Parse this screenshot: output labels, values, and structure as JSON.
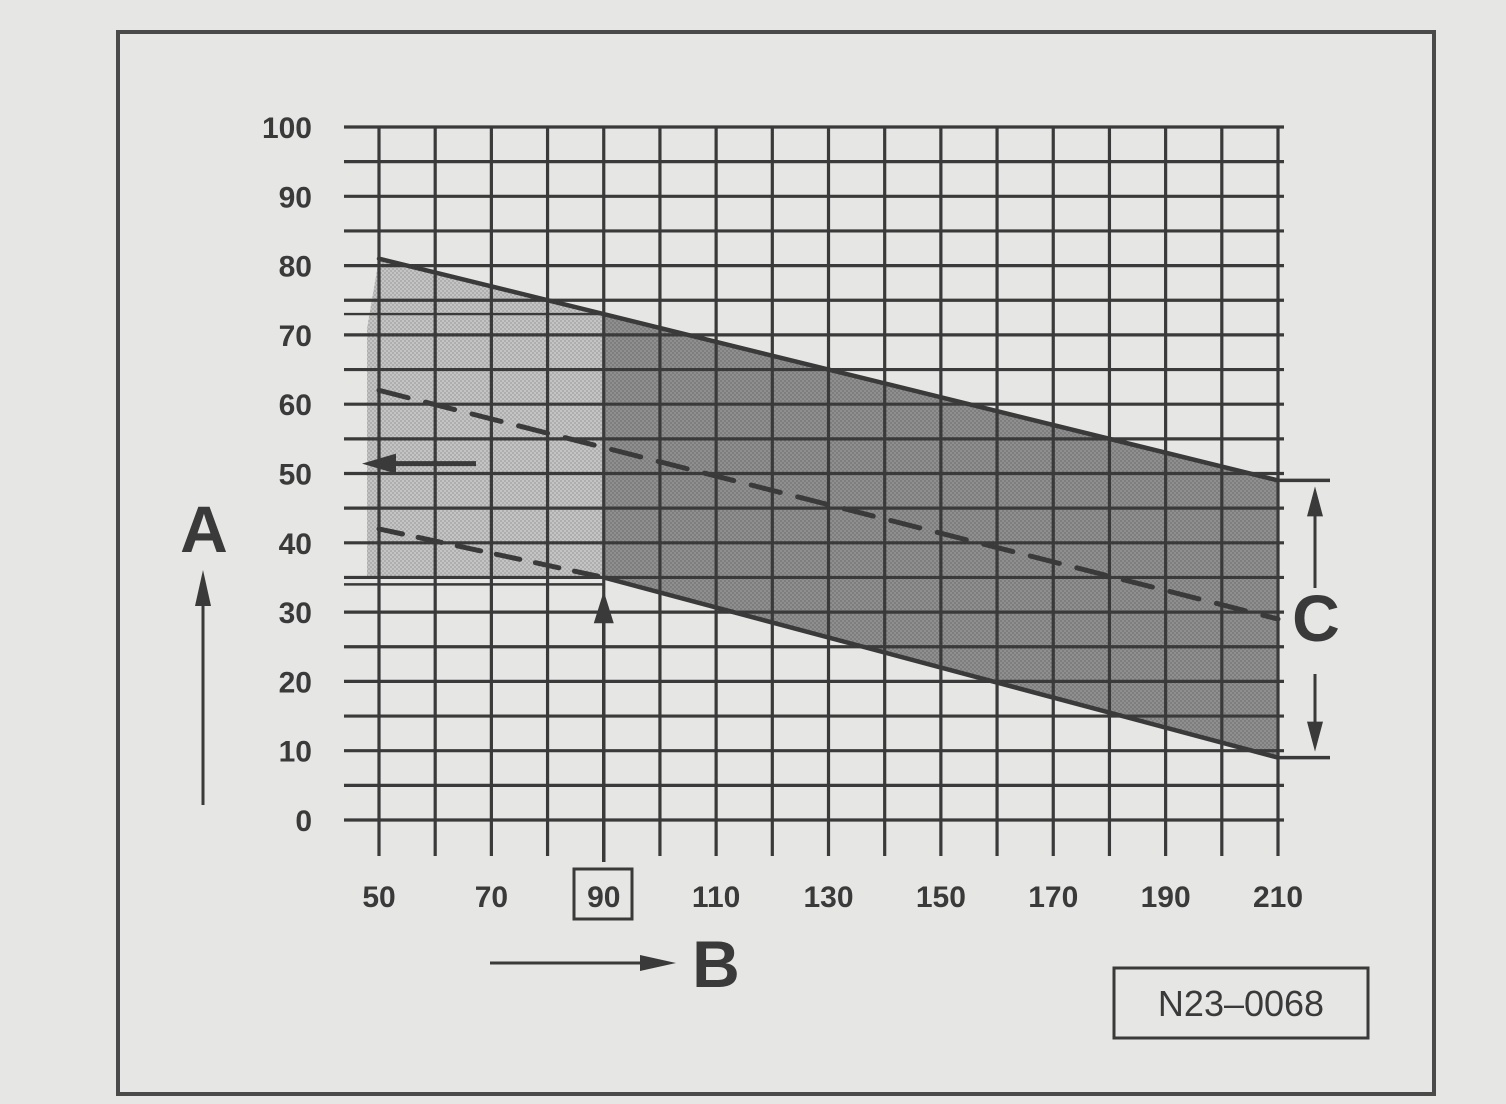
{
  "chart_data": {
    "type": "area",
    "title": "",
    "xlabel": "B",
    "ylabel": "A",
    "band_label": "C",
    "reference_code": "N23–0068",
    "highlighted_x_label": "90",
    "xlim": [
      50,
      210
    ],
    "ylim": [
      0,
      100
    ],
    "x_ticks": [
      50,
      70,
      90,
      110,
      130,
      150,
      170,
      190,
      210
    ],
    "y_ticks": [
      0,
      10,
      20,
      30,
      40,
      50,
      60,
      70,
      80,
      90,
      100
    ],
    "grid": true,
    "series": [
      {
        "x": [
          50,
          210
        ],
        "values": [
          81,
          49
        ]
      },
      {
        "x": [
          90,
          210
        ],
        "values": [
          35,
          9
        ]
      },
      {
        "x": [
          50,
          210
        ],
        "values": [
          62,
          29
        ]
      },
      {
        "x": [
          50,
          90
        ],
        "values": [
          42,
          35
        ]
      }
    ],
    "shaded_band": {
      "x_start": 90,
      "x_end": 210
    },
    "light_region": {
      "x_start": 50,
      "x_end": 90,
      "y_min": 35
    },
    "reading_example": {
      "x": 90,
      "y": 52
    },
    "colors": {
      "background": "#e6e6e4",
      "ink": "#3a3a3a",
      "band_dark": "#8f8f8f",
      "band_light": "#c4c4c4"
    }
  }
}
